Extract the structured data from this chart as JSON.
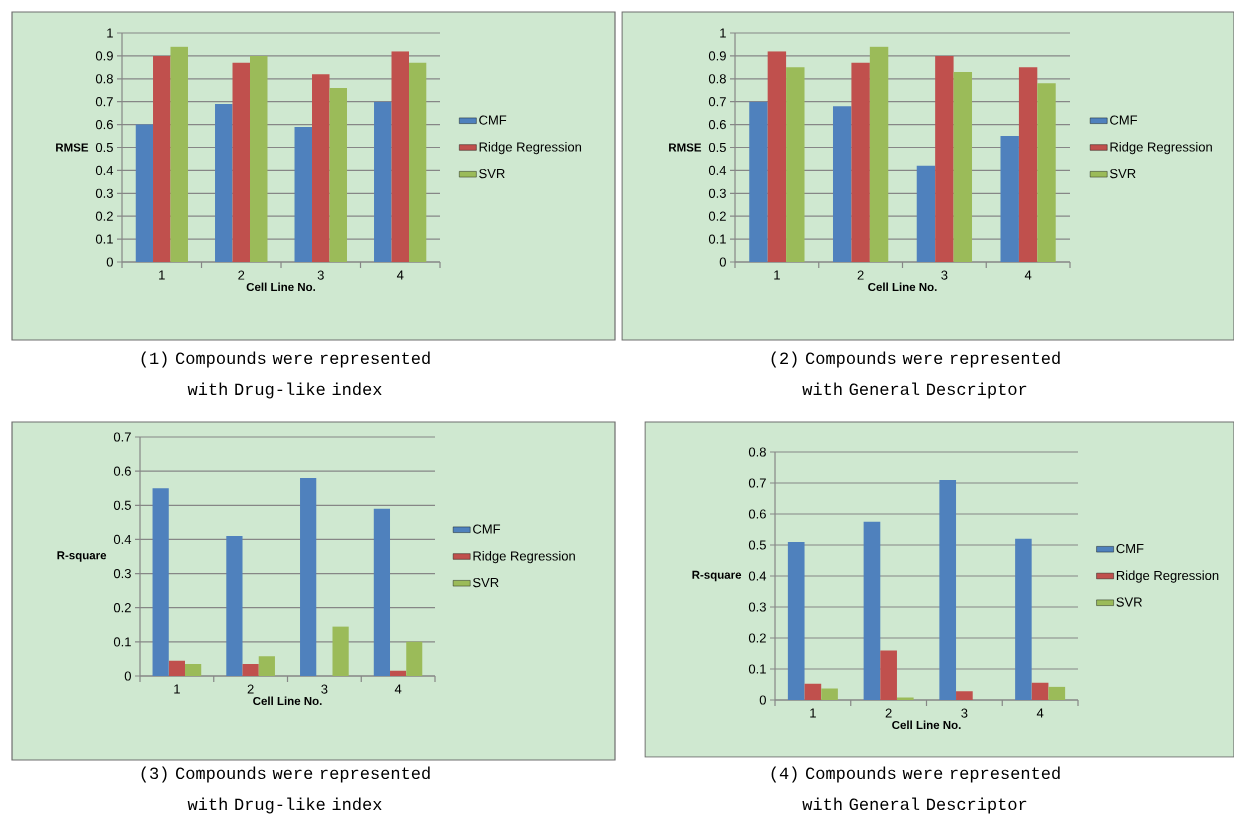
{
  "chart_data": [
    {
      "type": "bar",
      "categories": [
        "1",
        "2",
        "3",
        "4"
      ],
      "xlabel": "Cell Line No.",
      "ylabel": "RMSE",
      "ylim": [
        0,
        1
      ],
      "yticks": [
        0,
        0.1,
        0.2,
        0.3,
        0.4,
        0.5,
        0.6,
        0.7,
        0.8,
        0.9,
        1
      ],
      "grid": "y",
      "legend": "right",
      "annotations": [
        "(1) Compounds were represented with Drug-like index"
      ],
      "series": [
        {
          "name": "CMF",
          "color": "#4f81bd",
          "values": [
            0.6,
            0.69,
            0.59,
            0.7
          ]
        },
        {
          "name": "Ridge Regression",
          "color": "#c0504d",
          "values": [
            0.9,
            0.87,
            0.82,
            0.92
          ]
        },
        {
          "name": "SVR",
          "color": "#9bbb59",
          "values": [
            0.94,
            0.9,
            0.76,
            0.87
          ]
        }
      ]
    },
    {
      "type": "bar",
      "categories": [
        "1",
        "2",
        "3",
        "4"
      ],
      "xlabel": "Cell Line No.",
      "ylabel": "RMSE",
      "ylim": [
        0,
        1
      ],
      "yticks": [
        0,
        0.1,
        0.2,
        0.3,
        0.4,
        0.5,
        0.6,
        0.7,
        0.8,
        0.9,
        1
      ],
      "grid": "y",
      "legend": "right",
      "annotations": [
        "(2) Compounds were represented with General Descriptor"
      ],
      "series": [
        {
          "name": "CMF",
          "color": "#4f81bd",
          "values": [
            0.7,
            0.68,
            0.42,
            0.55
          ]
        },
        {
          "name": "Ridge Regression",
          "color": "#c0504d",
          "values": [
            0.92,
            0.87,
            0.9,
            0.85
          ]
        },
        {
          "name": "SVR",
          "color": "#9bbb59",
          "values": [
            0.85,
            0.94,
            0.83,
            0.78
          ]
        }
      ]
    },
    {
      "type": "bar",
      "categories": [
        "1",
        "2",
        "3",
        "4"
      ],
      "xlabel": "Cell Line No.",
      "ylabel": "R-square",
      "ylim": [
        0,
        0.7
      ],
      "yticks": [
        0,
        0.1,
        0.2,
        0.3,
        0.4,
        0.5,
        0.6,
        0.7
      ],
      "grid": "y",
      "legend": "right",
      "annotations": [
        "(3) Compounds were represented with Drug-like index"
      ],
      "series": [
        {
          "name": "CMF",
          "color": "#4f81bd",
          "values": [
            0.55,
            0.41,
            0.58,
            0.49
          ]
        },
        {
          "name": "Ridge Regression",
          "color": "#c0504d",
          "values": [
            0.045,
            0.035,
            null,
            0.015
          ]
        },
        {
          "name": "SVR",
          "color": "#9bbb59",
          "values": [
            0.035,
            0.058,
            0.145,
            0.1
          ]
        }
      ]
    },
    {
      "type": "bar",
      "categories": [
        "1",
        "2",
        "3",
        "4"
      ],
      "xlabel": "Cell Line No.",
      "ylabel": "R-square",
      "ylim": [
        0,
        0.8
      ],
      "yticks": [
        0,
        0.1,
        0.2,
        0.3,
        0.4,
        0.5,
        0.6,
        0.7,
        0.8
      ],
      "grid": "y",
      "legend": "right",
      "annotations": [
        "(4) Compounds were represented with General Descriptor"
      ],
      "series": [
        {
          "name": "CMF",
          "color": "#4f81bd",
          "values": [
            0.51,
            0.575,
            0.71,
            0.52
          ]
        },
        {
          "name": "Ridge Regression",
          "color": "#c0504d",
          "values": [
            0.052,
            0.16,
            0.028,
            0.056
          ]
        },
        {
          "name": "SVR",
          "color": "#9bbb59",
          "values": [
            0.037,
            0.008,
            null,
            0.043
          ]
        }
      ]
    }
  ]
}
